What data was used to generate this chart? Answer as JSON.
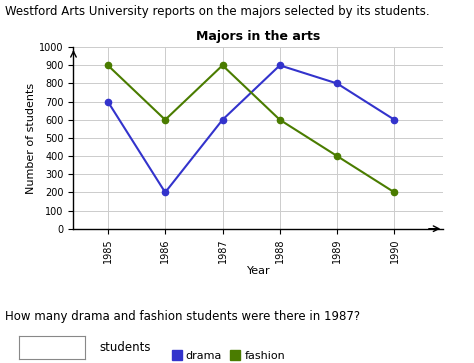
{
  "title": "Majors in the arts",
  "xlabel": "Year",
  "ylabel": "Number of students",
  "years": [
    1985,
    1986,
    1987,
    1988,
    1989,
    1990
  ],
  "drama": [
    700,
    200,
    600,
    900,
    800,
    600
  ],
  "fashion": [
    900,
    600,
    900,
    600,
    400,
    200
  ],
  "drama_color": "#3333cc",
  "fashion_color": "#4a7c00",
  "ylim": [
    0,
    1000
  ],
  "yticks": [
    0,
    100,
    200,
    300,
    400,
    500,
    600,
    700,
    800,
    900,
    1000
  ],
  "header_text": "Westford Arts University reports on the majors selected by its students.",
  "question_text": "How many drama and fashion students were there in 1987?",
  "answer_label": "students",
  "background_color": "#ffffff",
  "plot_bg_color": "#ffffff",
  "grid_color": "#cccccc",
  "title_fontsize": 9,
  "axis_label_fontsize": 8,
  "tick_fontsize": 7,
  "legend_fontsize": 8
}
